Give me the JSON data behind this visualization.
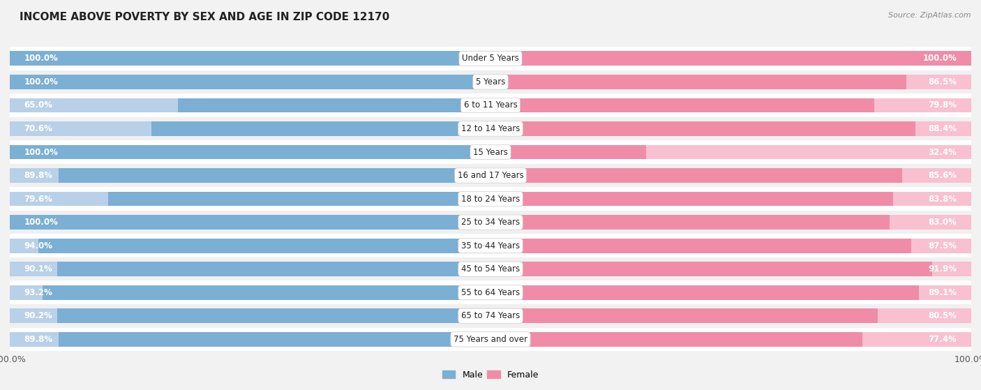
{
  "title": "INCOME ABOVE POVERTY BY SEX AND AGE IN ZIP CODE 12170",
  "source": "Source: ZipAtlas.com",
  "categories": [
    "Under 5 Years",
    "5 Years",
    "6 to 11 Years",
    "12 to 14 Years",
    "15 Years",
    "16 and 17 Years",
    "18 to 24 Years",
    "25 to 34 Years",
    "35 to 44 Years",
    "45 to 54 Years",
    "55 to 64 Years",
    "65 to 74 Years",
    "75 Years and over"
  ],
  "male_values": [
    100.0,
    100.0,
    65.0,
    70.6,
    100.0,
    89.8,
    79.6,
    100.0,
    94.0,
    90.1,
    93.2,
    90.2,
    89.8
  ],
  "female_values": [
    100.0,
    86.5,
    79.8,
    88.4,
    32.4,
    85.6,
    83.8,
    83.0,
    87.5,
    91.9,
    89.1,
    80.5,
    77.4
  ],
  "male_color": "#7bafd4",
  "female_color": "#f08ca8",
  "male_light_color": "#b8d0e8",
  "female_light_color": "#f8c0d0",
  "row_colors": [
    "#ffffff",
    "#f0f0f0"
  ],
  "bar_height": 0.62,
  "background_color": "#f2f2f2",
  "title_fontsize": 11,
  "label_fontsize": 8.5,
  "cat_fontsize": 8.5,
  "tick_fontsize": 9,
  "max_val": 100.0
}
